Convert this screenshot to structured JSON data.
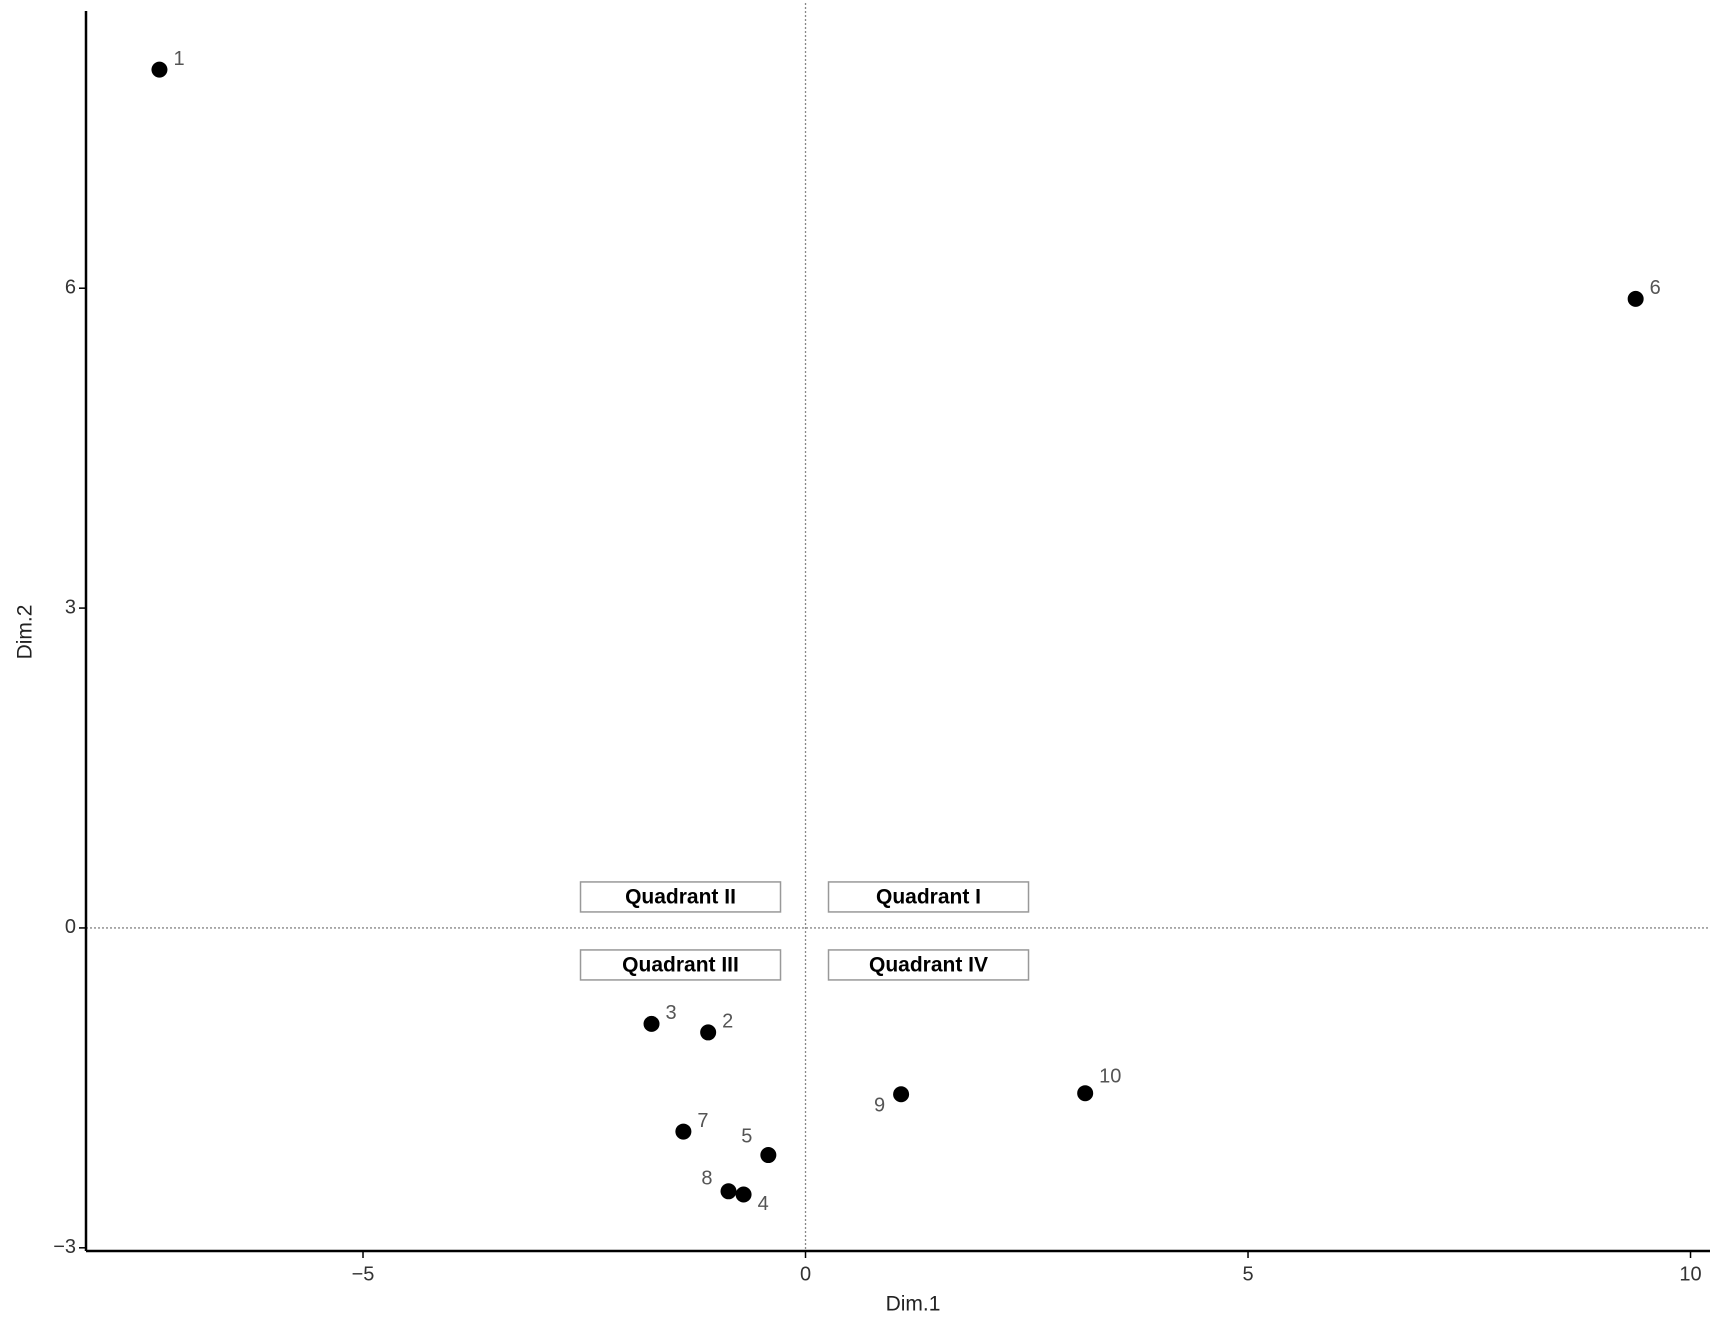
{
  "chart_data": {
    "type": "scatter",
    "x_label": "Dim.1",
    "y_label": "Dim.2",
    "series": [
      {
        "color": "#000000",
        "labels": [
          "1",
          "2",
          "3",
          "4",
          "5",
          "6",
          "7",
          "8",
          "9",
          "10"
        ],
        "x": [
          -7.3,
          -1.1,
          -1.74,
          -0.7,
          -0.42,
          9.38,
          -1.38,
          -0.87,
          1.08,
          3.16
        ],
        "y": [
          8.05,
          -0.98,
          -0.9,
          -2.5,
          -2.13,
          5.9,
          -1.91,
          -2.47,
          -1.56,
          -1.55
        ]
      }
    ],
    "annotations": [
      "Quadrant II",
      "Quadrant I",
      "Quadrant III",
      "Quadrant IV"
    ],
    "xlim": [
      -8.13,
      10.22
    ],
    "ylim": [
      -3.03,
      8.6
    ],
    "xticks": [
      {
        "value": -5,
        "label": "−5"
      },
      0,
      5,
      10
    ],
    "yticks": [
      {
        "value": -3,
        "label": "−3"
      },
      0,
      3,
      6
    ],
    "reference_lines": true
  }
}
